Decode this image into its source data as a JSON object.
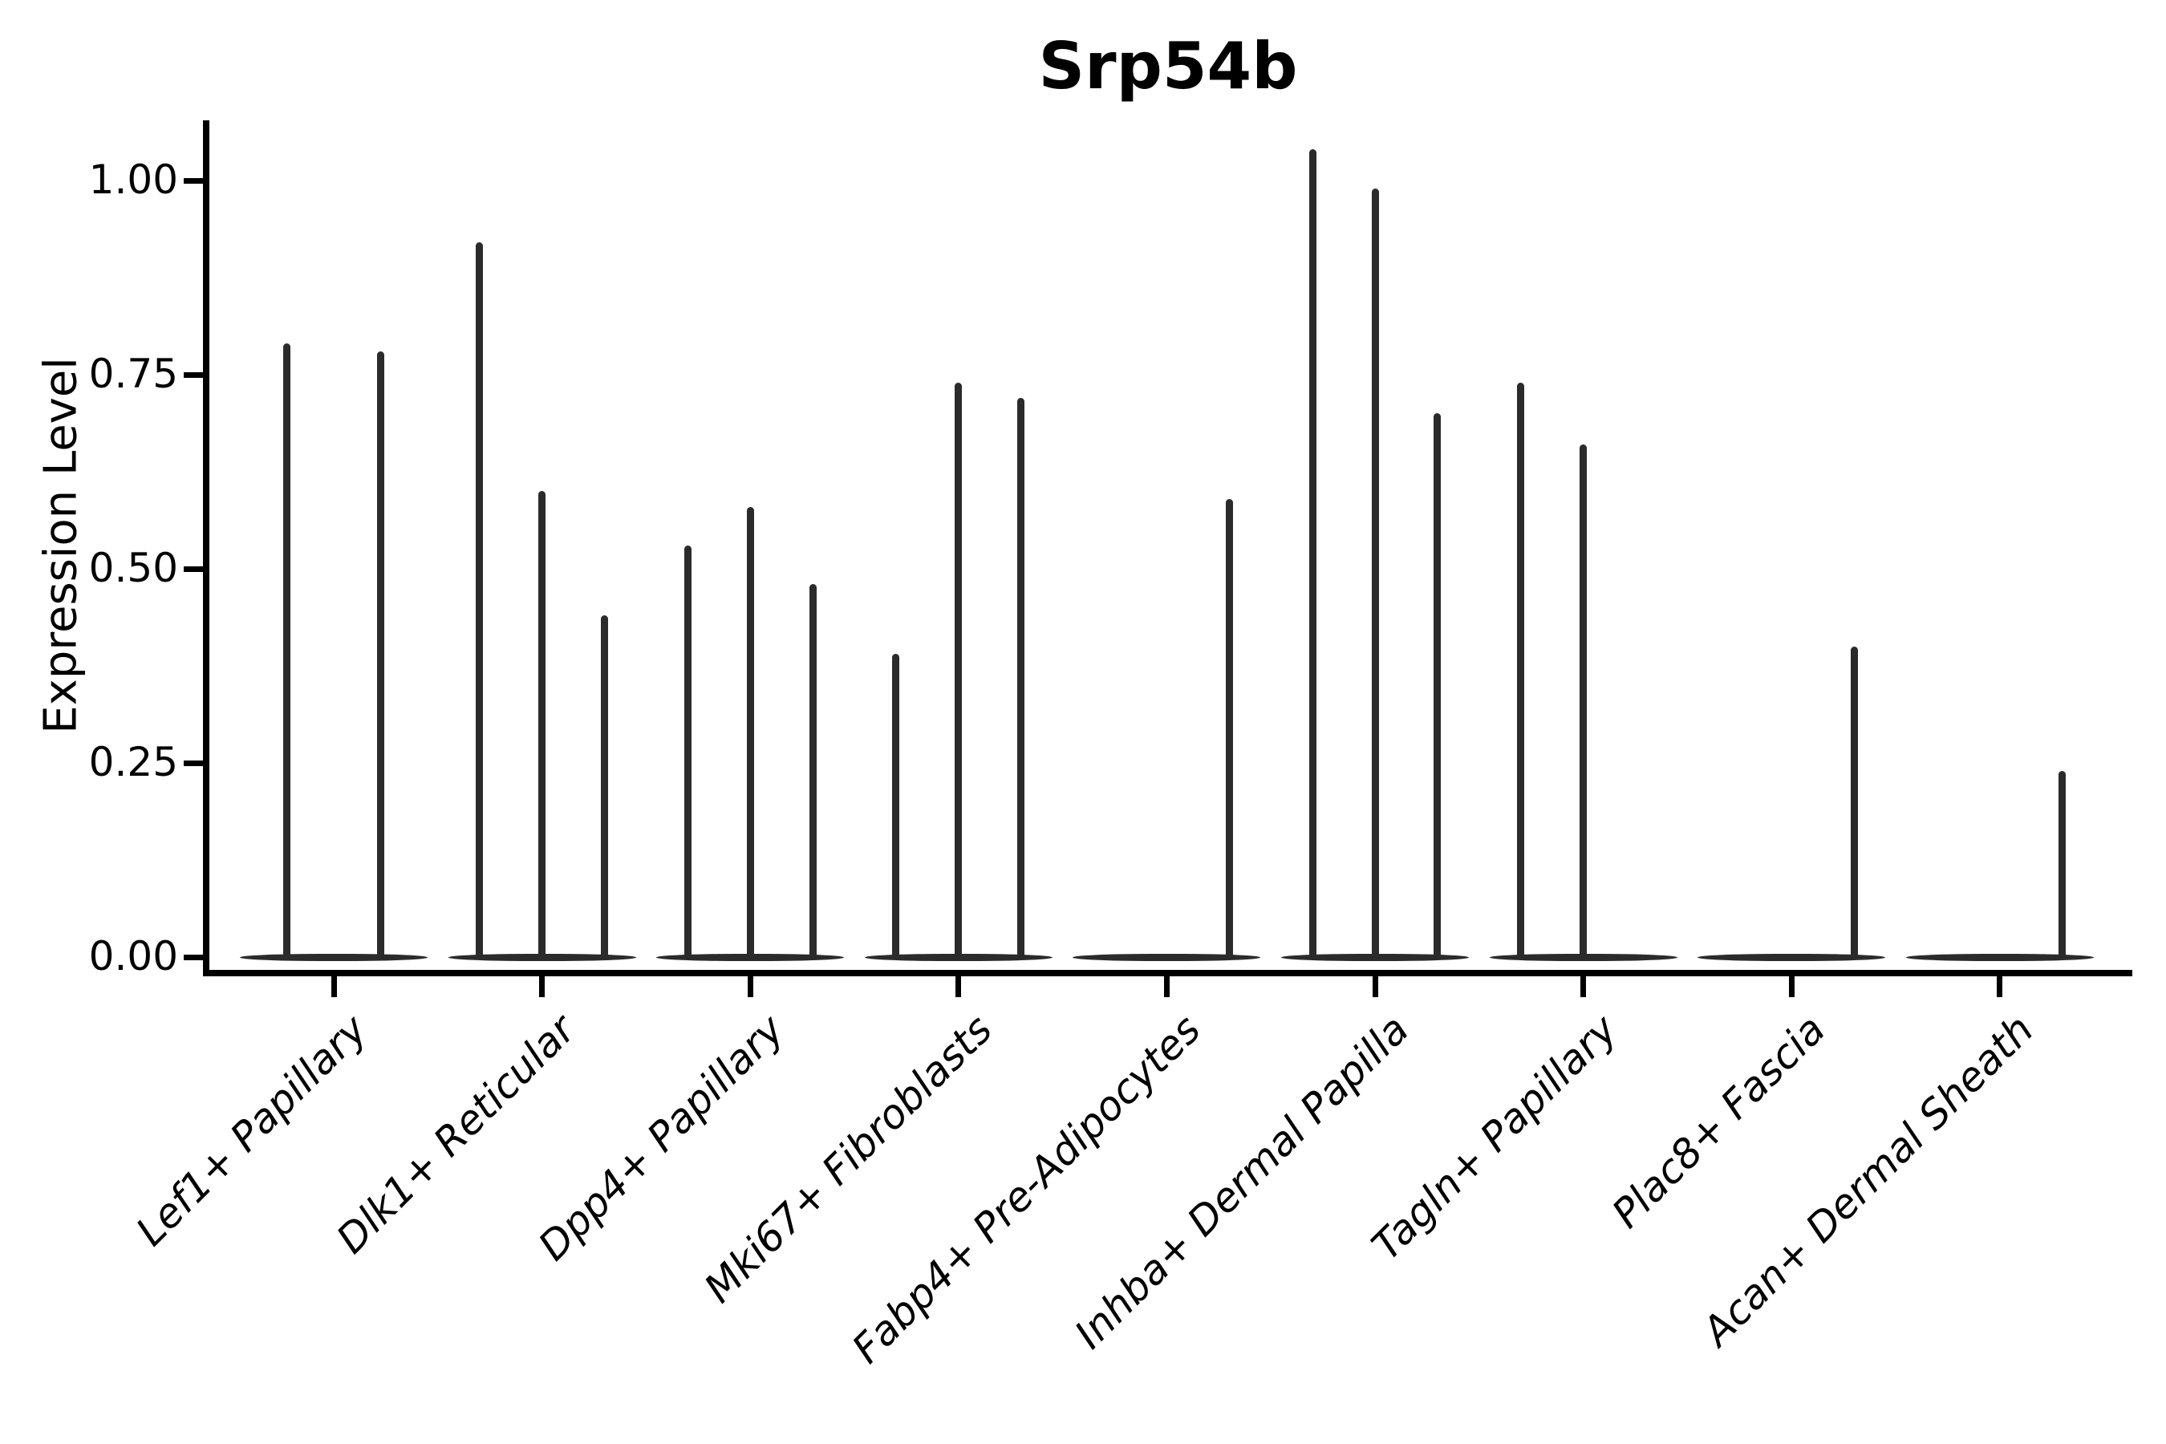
{
  "title": "Srp54b",
  "axes": {
    "ylabel": "Expression Level",
    "xlabel": "",
    "ytick_labels": [
      "0.00",
      "0.25",
      "0.50",
      "0.75",
      "1.00"
    ]
  },
  "chart_data": {
    "type": "violin",
    "title": "Srp54b",
    "xlabel": "",
    "ylabel": "Expression Level",
    "ylim": [
      -0.03,
      1.08
    ],
    "yticks": [
      0,
      0.25,
      0.5,
      0.75,
      1.0
    ],
    "ytick_labels": [
      "0.00",
      "0.25",
      "0.50",
      "0.75",
      "1.00"
    ],
    "grid": false,
    "legend": false,
    "background": "#ffffff",
    "violin_color": "#2b2b2b",
    "axis_color": "#000000",
    "style_note": "Expression mostly zero: each violin renders as a flat band at y=0 with a single thin density spike rising to the max expression; violins are dodged within each category; x labels rotated 45deg italic",
    "categories": [
      "Lef1+ Papillary",
      "Dlk1+ Reticular",
      "Dpp4+ Papillary",
      "Mki67+ Fibroblasts",
      "Fabp4+ Pre-Adipocytes",
      "Inhba+ Dermal Papilla",
      "Tagln+ Papillary",
      "Plac8+ Fascia",
      "Acan+ Dermal Sheath"
    ],
    "groups": [
      {
        "category": "Lef1+ Papillary",
        "violins": [
          {
            "offset": -0.225,
            "max": 0.79
          },
          {
            "offset": 0.225,
            "max": 0.78
          }
        ]
      },
      {
        "category": "Dlk1+ Reticular",
        "violins": [
          {
            "offset": -0.3,
            "max": 0.92
          },
          {
            "offset": 0,
            "max": 0.6
          },
          {
            "offset": 0.3,
            "max": 0.44
          }
        ]
      },
      {
        "category": "Dpp4+ Papillary",
        "violins": [
          {
            "offset": -0.3,
            "max": 0.53
          },
          {
            "offset": 0,
            "max": 0.58
          },
          {
            "offset": 0.3,
            "max": 0.48
          }
        ]
      },
      {
        "category": "Mki67+ Fibroblasts",
        "violins": [
          {
            "offset": -0.3,
            "max": 0.39
          },
          {
            "offset": 0,
            "max": 0.74
          },
          {
            "offset": 0.3,
            "max": 0.72
          }
        ]
      },
      {
        "category": "Fabp4+ Pre-Adipocytes",
        "violins": [
          {
            "offset": -0.3,
            "max": 0
          },
          {
            "offset": 0,
            "max": 0
          },
          {
            "offset": 0.3,
            "max": 0.59
          }
        ]
      },
      {
        "category": "Inhba+ Dermal Papilla",
        "violins": [
          {
            "offset": -0.3,
            "max": 1.04
          },
          {
            "offset": 0,
            "max": 0.99
          },
          {
            "offset": 0.3,
            "max": 0.7
          }
        ]
      },
      {
        "category": "Tagln+ Papillary",
        "violins": [
          {
            "offset": -0.3,
            "max": 0.74
          },
          {
            "offset": 0,
            "max": 0.66
          },
          {
            "offset": 0.3,
            "max": 0
          }
        ]
      },
      {
        "category": "Plac8+ Fascia",
        "violins": [
          {
            "offset": -0.3,
            "max": 0
          },
          {
            "offset": 0,
            "max": 0
          },
          {
            "offset": 0.3,
            "max": 0.4
          }
        ]
      },
      {
        "category": "Acan+ Dermal Sheath",
        "violins": [
          {
            "offset": -0.3,
            "max": 0
          },
          {
            "offset": 0,
            "max": 0
          },
          {
            "offset": 0.3,
            "max": 0.24
          }
        ]
      }
    ]
  }
}
